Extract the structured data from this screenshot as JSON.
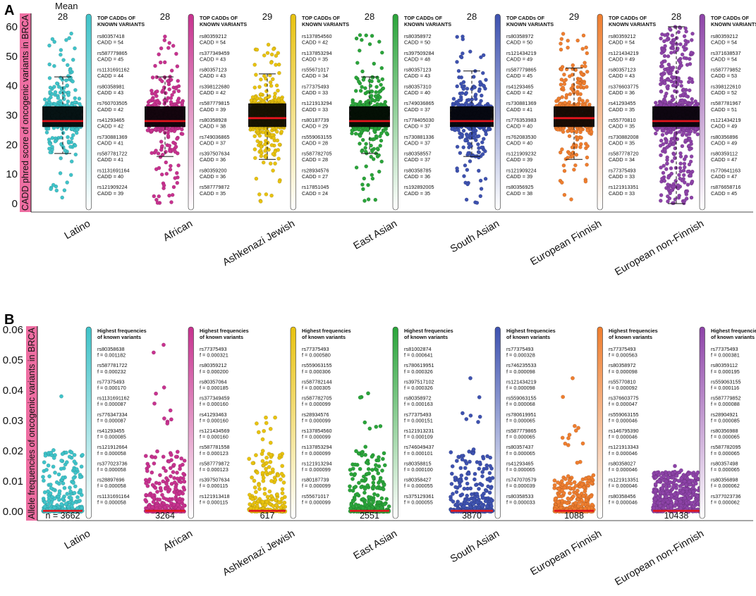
{
  "panel_labels": {
    "a": "A",
    "b": "B"
  },
  "mean_header": "Mean",
  "colors": {
    "Latino": "#3fc3c9",
    "African": "#c7328f",
    "Ashkenazi Jewish": "#e8c20f",
    "East Asian": "#2aa43a",
    "South Asian": "#3e52b0",
    "European Finnish": "#ef7e2f",
    "European non-Finnish": "#8d43a8",
    "median_line": "#e2141c",
    "box": "#000000",
    "ylabel_bar": "#ee6ea2"
  },
  "chart_data": [
    {
      "type": "scatter",
      "title": "",
      "ylabel": "CADD phred score of oncogenic variants in BRCA",
      "ylim": [
        0,
        60
      ],
      "yticks": [
        "0",
        "10",
        "20",
        "30",
        "40",
        "50",
        "60"
      ],
      "categories": [
        "Latino",
        "African",
        "Ashkenazi Jewish",
        "East Asian",
        "South Asian",
        "European Finnish",
        "European non-Finnish"
      ],
      "means": [
        "28",
        "28",
        "29",
        "28",
        "28",
        "29",
        "28"
      ],
      "boxes": [
        {
          "q1": 26,
          "median": 28,
          "q3": 33,
          "whisker_low": 17,
          "whisker_high": 43
        },
        {
          "q1": 26,
          "median": 28,
          "q3": 33,
          "whisker_low": 16,
          "whisker_high": 43
        },
        {
          "q1": 26,
          "median": 29,
          "q3": 34,
          "whisker_low": 15,
          "whisker_high": 44
        },
        {
          "q1": 26,
          "median": 28,
          "q3": 33,
          "whisker_low": 17,
          "whisker_high": 43
        },
        {
          "q1": 26,
          "median": 28,
          "q3": 33,
          "whisker_low": 16,
          "whisker_high": 45
        },
        {
          "q1": 26,
          "median": 29,
          "q3": 33,
          "whisker_low": 15,
          "whisker_high": 46
        },
        {
          "q1": 26,
          "median": 28,
          "q3": 33,
          "whisker_low": 0,
          "whisker_high": 60
        }
      ],
      "annotation_title": [
        "TOP CADDs OF",
        "KNOWN VARIANTS"
      ],
      "annotations": [
        [
          "rs80357418",
          "CADD = 54",
          "rs587779865",
          "CADD = 45",
          "rs1131691162",
          "CADD = 44",
          "rs80358981",
          "CADD = 43",
          "rs760703505",
          "CADD = 42",
          "rs41293465",
          "CADD = 42",
          "rs730881369",
          "CADD = 41",
          "rs587781722",
          "CADD = 41",
          "rs1131691164",
          "CADD = 40",
          "rs121909224",
          "CADD = 39"
        ],
        [
          "rs80359212",
          "CADD = 54",
          "rs377349459",
          "CADD = 43",
          "rs80357123",
          "CADD = 43",
          "rs398122680",
          "CADD = 42",
          "rs587779815",
          "CADD = 39",
          "rs80358928",
          "CADD = 38",
          "rs749036865",
          "CADD = 37",
          "rs397507634",
          "CADD = 36",
          "rs80359200",
          "CADD = 36",
          "rs587779872",
          "CADD = 35"
        ],
        [
          "rs137854560",
          "CADD = 42",
          "rs137853294",
          "CADD = 35",
          "rs55671017",
          "CADD = 34",
          "rs77375493",
          "CADD = 33",
          "rs121913294",
          "CADD = 33",
          "rs80187739",
          "CADD = 29",
          "rs559063155",
          "CADD = 28",
          "rs587782705",
          "CADD = 28",
          "rs28934576",
          "CADD = 27",
          "rs17851045",
          "CADD = 24"
        ],
        [
          "rs80358972",
          "CADD = 50",
          "rs397509284",
          "CADD = 48",
          "rs80357123",
          "CADD = 43",
          "rs80357310",
          "CADD = 40",
          "rs749036865",
          "CADD = 37",
          "rs778405030",
          "CADD = 37",
          "rs730881336",
          "CADD = 37",
          "rs80358557",
          "CADD = 37",
          "rs80358785",
          "CADD = 36",
          "rs192892005",
          "CADD = 35"
        ],
        [
          "rs80358972",
          "CADD = 50",
          "rs121434219",
          "CADD = 49",
          "rs587779865",
          "CADD = 45",
          "rs41293465",
          "CADD = 42",
          "rs730881369",
          "CADD = 41",
          "rs776353983",
          "CADD = 40",
          "rs762083530",
          "CADD = 40",
          "rs121909232",
          "CADD = 39",
          "rs121909224",
          "CADD = 39",
          "rs80356925",
          "CADD = 38"
        ],
        [
          "rs80359212",
          "CADD = 54",
          "rs121434219",
          "CADD = 49",
          "rs80357123",
          "CADD = 43",
          "rs376603775",
          "CADD = 36",
          "rs41293455",
          "CADD = 35",
          "rs55770810",
          "CADD = 35",
          "rs730882008",
          "CADD = 35",
          "rs587778720",
          "CADD = 34",
          "rs77375493",
          "CADD = 33",
          "rs121913351",
          "CADD = 33"
        ],
        [
          "rs80359212",
          "CADD = 54",
          "rs371638537",
          "CADD = 54",
          "rs587779852",
          "CADD = 53",
          "rs398122610",
          "CADD = 52",
          "rs587781967",
          "CADD = 51",
          "rs121434219",
          "CADD = 49",
          "rs80356896",
          "CADD = 49",
          "rs80359112",
          "CADD = 47",
          "rs770641163",
          "CADD = 47",
          "rs876658716",
          "CADD = 45"
        ]
      ]
    },
    {
      "type": "scatter",
      "title": "",
      "ylabel": "Allele frequencies of oncogenic variants in BRCA",
      "ylim": [
        0,
        0.06
      ],
      "yticks": [
        "0.00",
        "0.01",
        "0.02",
        "0.03",
        "0.04",
        "0.05",
        "0.06"
      ],
      "categories": [
        "Latino",
        "African",
        "Ashkenazi Jewish",
        "East Asian",
        "South Asian",
        "European Finnish",
        "European non-Finnish"
      ],
      "counts": [
        "n = 3662",
        "3264",
        "617",
        "2551",
        "3870",
        "1088",
        "10438"
      ],
      "max_values": [
        0.038,
        0.055,
        0.031,
        0.039,
        0.044,
        0.044,
        0.015
      ],
      "annotation_title": [
        "Highest frequencies",
        "of known variants"
      ],
      "annotations": [
        [
          "rs80358638",
          "f = 0.001182",
          "rs587781722",
          "f = 0.000232",
          "rs77375493",
          "f = 0.000170",
          "rs1131691162",
          "f = 0.000087",
          "rs776347334",
          "f = 0.000087",
          "rs41293455",
          "f = 0.000085",
          "rs121912664",
          "f = 0.000058",
          "rs377023736",
          "f = 0.000058",
          "rs28897696",
          "f = 0.000058",
          "rs1131691164",
          "f = 0.000058"
        ],
        [
          "rs77375493",
          "f = 0.000321",
          "rs80359212",
          "f = 0.000200",
          "rs80357064",
          "f = 0.000185",
          "rs377349459",
          "f = 0.000160",
          "rs41293463",
          "f = 0.000160",
          "rs121434569",
          "f = 0.000160",
          "rs587781558",
          "f = 0.000123",
          "rs587779872",
          "f = 0.000123",
          "rs397507634",
          "f = 0.000115",
          "rs121913418",
          "f = 0.000115"
        ],
        [
          "rs77375493",
          "f = 0.000580",
          "rs559063155",
          "f = 0.000306",
          "rs587782144",
          "f = 0.000305",
          "rs587782705",
          "f = 0.000099",
          "rs28934576",
          "f = 0.000099",
          "rs137854560",
          "f = 0.000099",
          "rs137853294",
          "f = 0.000099",
          "rs121913294",
          "f = 0.000099",
          "rs80187739",
          "f = 0.000099",
          "rs55671017",
          "f = 0.000099"
        ],
        [
          "rs81002874",
          "f = 0.000641",
          "rs780619951",
          "f = 0.000326",
          "rs397517102",
          "f = 0.000326",
          "rs80358972",
          "f = 0.000163",
          "rs77375493",
          "f = 0.000151",
          "rs121913231",
          "f = 0.000109",
          "rs746049437",
          "f = 0.000101",
          "rs80358815",
          "f = 0.000100",
          "rs80358427",
          "f = 0.000055",
          "rs375129361",
          "f = 0.000055"
        ],
        [
          "rs77375493",
          "f = 0.000328",
          "rs746235533",
          "f = 0.000098",
          "rs121434219",
          "f = 0.000098",
          "rs559063155",
          "f = 0.000068",
          "rs780619951",
          "f = 0.000065",
          "rs587779865",
          "f = 0.000065",
          "rs80357437",
          "f = 0.000065",
          "rs41293465",
          "f = 0.000065",
          "rs747070579",
          "f = 0.000039",
          "rs80358533",
          "f = 0.000033"
        ],
        [
          "rs77375493",
          "f = 0.000563",
          "rs80358972",
          "f = 0.000098",
          "rs55770810",
          "f = 0.000092",
          "rs376603775",
          "f = 0.000047",
          "rs559063155",
          "f = 0.000046",
          "rs146795390",
          "f = 0.000046",
          "rs121913343",
          "f = 0.000046",
          "rs80358027",
          "f = 0.000046",
          "rs121913351",
          "f = 0.000046",
          "rs80358456",
          "f = 0.000046"
        ],
        [
          "rs77375493",
          "f = 0.000381",
          "rs80359112",
          "f = 0.000195",
          "rs559063155",
          "f = 0.000116",
          "rs587779852",
          "f = 0.000088",
          "rs28904921",
          "f = 0.000085",
          "rs80356988",
          "f = 0.000065",
          "rs587782095",
          "f = 0.000065",
          "rs80357498",
          "f = 0.000065",
          "rs80356898",
          "f = 0.000062",
          "rs377023736",
          "f = 0.000062"
        ]
      ]
    }
  ]
}
